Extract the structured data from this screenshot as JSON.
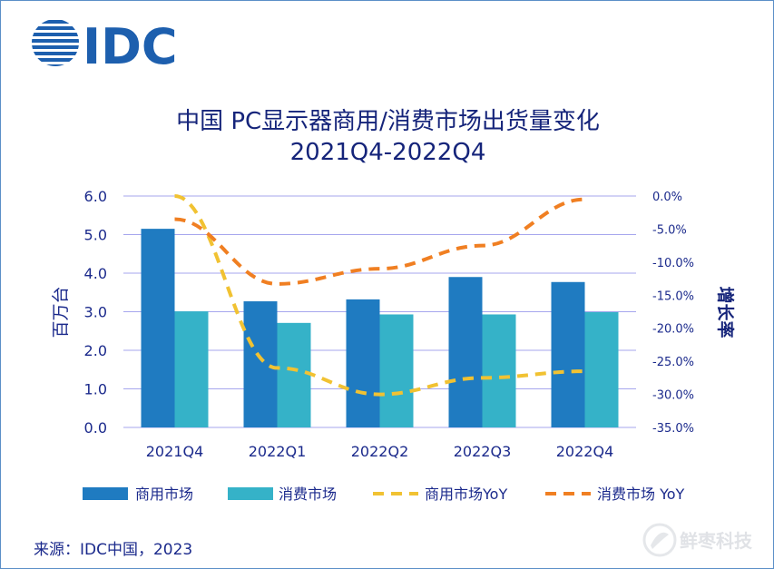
{
  "brand": {
    "logo_text": "IDC",
    "watermark_text": "鲜枣科技"
  },
  "title": {
    "line1": "中国 PC显示器商用/消费市场出货量变化",
    "line2": "2021Q4-2022Q4"
  },
  "source": "来源：IDC中国，2023",
  "colors": {
    "title": "#15247a",
    "commercial_bar": "#1f7bc1",
    "consumer_bar": "#35b2c8",
    "commercial_yoy": "#f1c232",
    "consumer_yoy": "#f07f22",
    "grid": "#a6a6ee"
  },
  "chart_data": {
    "type": "bar",
    "categories": [
      "2021Q4",
      "2022Q1",
      "2022Q2",
      "2022Q3",
      "2022Q4"
    ],
    "series": [
      {
        "name": "商用市场",
        "type": "bar",
        "axis": "left",
        "values": [
          5.15,
          3.27,
          3.32,
          3.9,
          3.77
        ]
      },
      {
        "name": "消费市场",
        "type": "bar",
        "axis": "left",
        "values": [
          3.01,
          2.71,
          2.93,
          2.93,
          2.99
        ]
      },
      {
        "name": "商用市场YoY",
        "type": "line",
        "style": "dashed",
        "axis": "right",
        "values": [
          0.0,
          -26.0,
          -30.0,
          -27.5,
          -26.5
        ]
      },
      {
        "name": "消费市场 YoY",
        "type": "line",
        "style": "dashed",
        "axis": "right",
        "values": [
          -3.5,
          -13.3,
          -11.0,
          -7.5,
          -0.5
        ]
      }
    ],
    "ylabel": "百万台",
    "y2label": "增长率",
    "ylim": [
      0,
      6
    ],
    "y2lim": [
      -35,
      0
    ],
    "yticks": [
      "6.0",
      "5.0",
      "4.0",
      "3.0",
      "2.0",
      "1.0",
      "0.0"
    ],
    "y2ticks": [
      "0.0%",
      "-5.0%",
      "-10.0%",
      "-15.0%",
      "-20.0%",
      "-25.0%",
      "-30.0%",
      "-35.0%"
    ],
    "grid": true,
    "legend_position": "bottom"
  }
}
